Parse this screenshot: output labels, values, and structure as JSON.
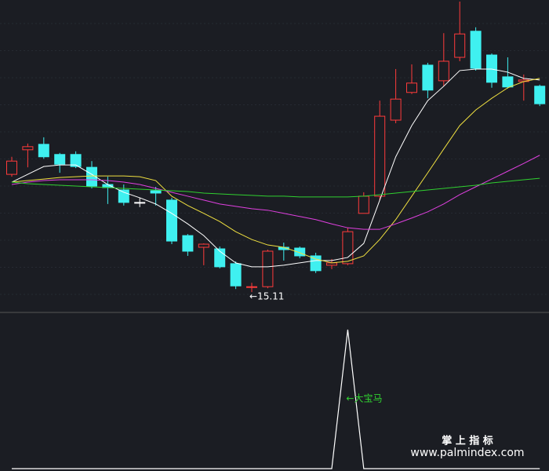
{
  "chart_data": {
    "type": "candlestick",
    "ylim": [
      14.6,
      22.6
    ],
    "up_color": "#ff3b3b",
    "down_color": "#3ff0f0",
    "flat_color": "#ffffff",
    "candles": {
      "open": [
        18.13,
        18.76,
        18.9,
        18.64,
        18.64,
        18.31,
        17.87,
        17.73,
        17.41,
        17.71,
        17.47,
        16.56,
        16.26,
        16.22,
        15.84,
        15.23,
        15.25,
        16.26,
        16.24,
        16.04,
        15.8,
        15.84,
        17.13,
        17.57,
        19.52,
        20.23,
        20.93,
        20.53,
        21.13,
        21.8,
        21.19,
        20.63,
        20.51,
        20.39
      ],
      "high": [
        18.58,
        18.92,
        19.08,
        18.68,
        18.72,
        18.47,
        18.07,
        17.87,
        17.53,
        17.81,
        17.53,
        16.6,
        16.36,
        16.28,
        15.9,
        15.35,
        16.2,
        16.38,
        16.28,
        16.12,
        15.96,
        16.76,
        17.67,
        20.02,
        20.83,
        20.95,
        20.99,
        21.75,
        22.56,
        21.9,
        21.23,
        21.13,
        20.69,
        20.43
      ],
      "low": [
        18.07,
        18.31,
        18.53,
        18.17,
        18.29,
        17.77,
        17.37,
        17.33,
        17.29,
        17.33,
        16.34,
        16.04,
        15.8,
        15.72,
        15.19,
        15.11,
        15.21,
        15.92,
        15.98,
        15.6,
        15.7,
        15.8,
        17.13,
        17.47,
        19.44,
        20.19,
        20.08,
        20.39,
        21.03,
        20.79,
        20.35,
        20.33,
        20.02,
        19.88
      ],
      "close": [
        18.47,
        18.84,
        18.58,
        18.39,
        18.33,
        17.83,
        17.79,
        17.41,
        17.41,
        17.65,
        16.42,
        16.16,
        16.34,
        15.76,
        15.27,
        15.25,
        16.16,
        16.2,
        16.04,
        15.66,
        15.86,
        16.66,
        17.57,
        19.62,
        20.06,
        20.47,
        20.29,
        21.03,
        21.73,
        20.85,
        20.49,
        20.37,
        20.55,
        19.94
      ]
    },
    "low_labels": [
      null,
      null,
      null,
      null,
      null,
      null,
      null,
      null,
      null,
      null,
      null,
      null,
      null,
      null,
      null,
      "←15.11",
      null,
      null,
      null,
      null,
      null,
      null,
      null,
      null,
      null,
      null,
      null,
      null,
      null,
      null,
      null,
      null,
      null,
      null
    ],
    "series": [
      {
        "color": "#ffffff",
        "values": [
          17.93,
          18.13,
          18.33,
          18.37,
          18.37,
          18.13,
          17.87,
          17.67,
          17.53,
          17.37,
          17.13,
          16.86,
          16.56,
          16.16,
          15.86,
          15.76,
          15.76,
          15.8,
          15.86,
          15.92,
          15.92,
          16.0,
          16.36,
          17.47,
          18.58,
          19.38,
          20.02,
          20.39,
          20.79,
          20.83,
          20.83,
          20.75,
          20.59,
          20.55
        ]
      },
      {
        "color": "#f0e040",
        "values": [
          17.93,
          17.97,
          18.01,
          18.05,
          18.07,
          18.09,
          18.09,
          18.09,
          18.07,
          17.97,
          17.57,
          17.33,
          17.13,
          16.92,
          16.66,
          16.46,
          16.32,
          16.26,
          16.12,
          15.96,
          15.86,
          15.9,
          16.04,
          16.46,
          16.97,
          17.57,
          18.17,
          18.78,
          19.38,
          19.78,
          20.08,
          20.35,
          20.51,
          20.59
        ]
      },
      {
        "color": "#e040e0",
        "values": [
          17.87,
          17.93,
          17.97,
          17.99,
          17.99,
          17.99,
          17.97,
          17.93,
          17.87,
          17.77,
          17.67,
          17.57,
          17.47,
          17.37,
          17.31,
          17.25,
          17.21,
          17.13,
          17.05,
          16.97,
          16.86,
          16.76,
          16.72,
          16.72,
          16.86,
          17.01,
          17.17,
          17.37,
          17.61,
          17.81,
          18.01,
          18.21,
          18.41,
          18.62
        ]
      },
      {
        "color": "#30d030",
        "values": [
          17.93,
          17.89,
          17.87,
          17.85,
          17.83,
          17.81,
          17.79,
          17.77,
          17.75,
          17.73,
          17.71,
          17.69,
          17.65,
          17.63,
          17.61,
          17.59,
          17.57,
          17.57,
          17.55,
          17.55,
          17.55,
          17.55,
          17.57,
          17.61,
          17.65,
          17.69,
          17.73,
          17.77,
          17.81,
          17.85,
          17.91,
          17.95,
          17.99,
          18.03
        ]
      }
    ],
    "indicator": {
      "color": "#ffffff",
      "ylim": [
        0,
        1
      ],
      "values": [
        0,
        0,
        0,
        0,
        0,
        0,
        0,
        0,
        0,
        0,
        0,
        0,
        0,
        0,
        0,
        0,
        0,
        0,
        0,
        0,
        0,
        1,
        0,
        0,
        0,
        0,
        0,
        0,
        0,
        0,
        0,
        0,
        0,
        0
      ],
      "annotation": "←大宝马",
      "annotation_color": "#30d030"
    },
    "watermark": {
      "title": "掌 上 指 标",
      "url": "www.palmindex.com"
    }
  }
}
